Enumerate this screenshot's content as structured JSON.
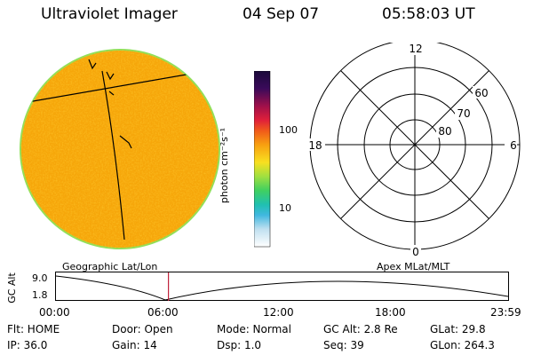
{
  "header": {
    "title": "Ultraviolet Imager",
    "date": "04 Sep 07",
    "time": "05:58:03 UT"
  },
  "colorbar": {
    "unit_label": "photon cm⁻²s⁻¹",
    "ticks": [
      "100",
      "10"
    ]
  },
  "polar_plot": {
    "clock_labels": {
      "top": "12",
      "left": "18",
      "right": "6",
      "bottom": "0"
    },
    "lat_labels": [
      "60",
      "70",
      "80"
    ]
  },
  "map_labels": {
    "left": "Geographic Lat/Lon",
    "right": "Apex MLat/MLT"
  },
  "altitude_strip": {
    "ylabel": "GC Alt",
    "yticks": [
      "9.0",
      "1.8"
    ],
    "xticks": [
      "00:00",
      "06:00",
      "12:00",
      "18:00",
      "23:59"
    ],
    "marker_time_hours": 5.97
  },
  "footer": {
    "row1": {
      "flt": "Flt: HOME",
      "door": "Door: Open",
      "mode": "Mode: Normal",
      "gcalt": "GC Alt: 2.8 Re",
      "glat": "GLat:  29.8"
    },
    "row2": {
      "ip": "IP: 36.0",
      "gain": "Gain: 14",
      "dsp": "Dsp:    1.0",
      "seq": "Seq: 39",
      "glon": "GLon: 264.3"
    }
  },
  "colors": {
    "disk_base": "#f6a60a",
    "disk_rim": "#8ee05a",
    "marker": "#c0203a"
  }
}
